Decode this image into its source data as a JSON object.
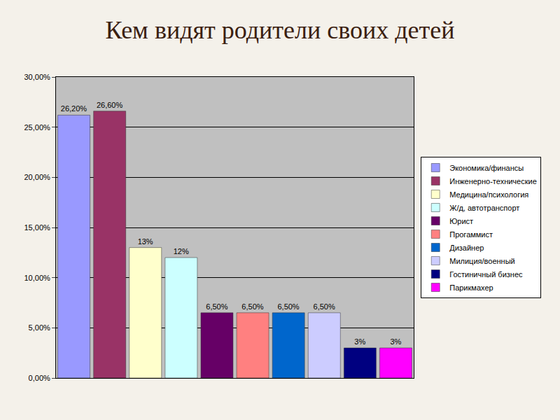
{
  "chart_data": {
    "type": "bar",
    "title": "Кем видят родители своих детей",
    "categories": [
      "Экономика/финансы",
      "Инженерно-технические",
      "Медицина/психология",
      "Ж/д, автотранспорт",
      "Юрист",
      "Прогаммист",
      "Дизайнер",
      "Милиция/военный",
      "Гостиничный бизнес",
      "Парикмахер"
    ],
    "values": [
      26.2,
      26.6,
      13,
      12,
      6.5,
      6.5,
      6.5,
      6.5,
      3,
      3
    ],
    "value_labels": [
      "26,20%",
      "26,60%",
      "13%",
      "12%",
      "6,50%",
      "6,50%",
      "6,50%",
      "6,50%",
      "3%",
      "3%"
    ],
    "colors": [
      "#9999ff",
      "#993366",
      "#ffffcc",
      "#ccffff",
      "#660066",
      "#ff8080",
      "#0066cc",
      "#ccccff",
      "#000080",
      "#ff00ff"
    ],
    "ylim": [
      0,
      30
    ],
    "yticks": [
      {
        "value": 0,
        "label": "0,00%"
      },
      {
        "value": 5,
        "label": "5,00%"
      },
      {
        "value": 10,
        "label": "10,00%"
      },
      {
        "value": 15,
        "label": "15,00%"
      },
      {
        "value": 20,
        "label": "20,00%"
      },
      {
        "value": 25,
        "label": "25,00%"
      },
      {
        "value": 30,
        "label": "30,00%"
      }
    ],
    "grid": true,
    "legend": "right",
    "data_labels": true,
    "tick_labels": "y"
  }
}
